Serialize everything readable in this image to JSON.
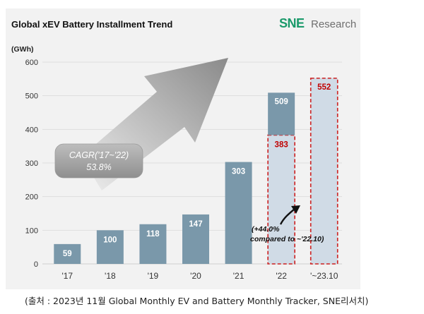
{
  "chart_data": {
    "type": "bar",
    "title": "Global xEV Battery Installment Trend",
    "ylabel": "(GWh)",
    "xlabel": "",
    "ylim": [
      0,
      600
    ],
    "yticks": [
      "0",
      "100",
      "200",
      "300",
      "400",
      "500",
      "600"
    ],
    "grid": true,
    "categories": [
      "'17",
      "'18",
      "'19",
      "'20",
      "'21",
      "'22",
      "'~23.10"
    ],
    "values": [
      59,
      100,
      118,
      147,
      303,
      509,
      552
    ],
    "value_labels": [
      "59",
      "100",
      "118",
      "147",
      "303",
      "509",
      "552"
    ],
    "partial": {
      "category": "'22",
      "value": 383,
      "label": "383"
    },
    "annotations": {
      "cagr_line1": "CAGR('17~'22)",
      "cagr_line2": "53.8%",
      "growth_line1": "(+44.0%",
      "growth_line2": "compared to ~'22.10)"
    }
  },
  "brand": {
    "logo_text": "SNE",
    "name": "Research"
  },
  "source_note": "(출처 : 2023년 11월 Global Monthly EV and Battery Monthly Tracker, SNE리서치)",
  "colors": {
    "bar": "#7a98aa",
    "projection_fill": "#d0dbe6",
    "projection_border": "#cc1f1f",
    "value_text_highlight": "#c00000",
    "logo_green": "#1b9a6b"
  }
}
